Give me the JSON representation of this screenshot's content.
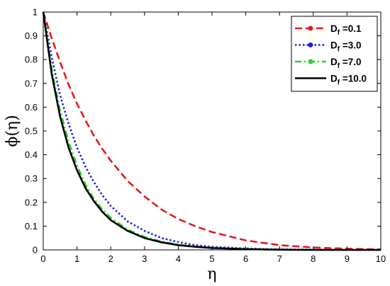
{
  "chart_data": {
    "type": "line",
    "title": "",
    "xlabel": "η",
    "ylabel": "ϕ(η)",
    "xlim": [
      0,
      10
    ],
    "ylim": [
      0,
      1
    ],
    "xticks": [
      "0",
      "1",
      "2",
      "3",
      "4",
      "5",
      "6",
      "7",
      "8",
      "9",
      "10"
    ],
    "yticks": [
      "0",
      "0.1",
      "0.2",
      "0.3",
      "0.4",
      "0.5",
      "0.6",
      "0.7",
      "0.8",
      "0.9",
      "1"
    ],
    "grid": false,
    "legend_position": "top-right",
    "series": [
      {
        "name": "Df =0.1",
        "legend_main": "D",
        "legend_sub": "f",
        "legend_value": " =0.1",
        "color": "#e41a1c",
        "style": "dashed",
        "marker": "circle",
        "x": [
          0,
          0.25,
          0.5,
          0.75,
          1,
          1.25,
          1.5,
          1.75,
          2,
          2.5,
          3,
          3.5,
          4,
          4.5,
          5,
          6,
          7,
          8,
          9,
          10
        ],
        "y": [
          1.0,
          0.89,
          0.79,
          0.695,
          0.615,
          0.545,
          0.48,
          0.425,
          0.375,
          0.29,
          0.225,
          0.17,
          0.13,
          0.1,
          0.075,
          0.04,
          0.02,
          0.01,
          0.005,
          0.002
        ]
      },
      {
        "name": "Df =3.0",
        "legend_main": "D",
        "legend_sub": "f",
        "legend_value": " =3.0",
        "color": "#1f1fd6",
        "style": "dotted",
        "marker": "circle",
        "x": [
          0,
          0.25,
          0.5,
          0.75,
          1,
          1.25,
          1.5,
          1.75,
          2,
          2.5,
          3,
          3.5,
          4,
          4.5,
          5,
          6,
          7,
          8,
          9,
          10
        ],
        "y": [
          1.0,
          0.81,
          0.65,
          0.53,
          0.43,
          0.35,
          0.285,
          0.23,
          0.185,
          0.12,
          0.08,
          0.05,
          0.033,
          0.02,
          0.013,
          0.006,
          0.002,
          0.001,
          0.0,
          0.0
        ]
      },
      {
        "name": "Df =7.0",
        "legend_main": "D",
        "legend_sub": "f",
        "legend_value": " =7.0",
        "color": "#33cc33",
        "style": "dash-dot",
        "marker": "circle",
        "x": [
          0,
          0.25,
          0.5,
          0.75,
          1,
          1.25,
          1.5,
          1.75,
          2,
          2.5,
          3,
          3.5,
          4,
          4.5,
          5,
          6,
          7,
          8,
          9,
          10
        ],
        "y": [
          1.0,
          0.76,
          0.585,
          0.455,
          0.355,
          0.275,
          0.215,
          0.17,
          0.135,
          0.085,
          0.055,
          0.035,
          0.022,
          0.014,
          0.009,
          0.004,
          0.001,
          0.0,
          0.0,
          0.0
        ]
      },
      {
        "name": "Df =10.0",
        "legend_main": "D",
        "legend_sub": "f",
        "legend_value": " =10.0",
        "color": "#000000",
        "style": "solid",
        "marker": "none",
        "x": [
          0,
          0.25,
          0.5,
          0.75,
          1,
          1.25,
          1.5,
          1.75,
          2,
          2.5,
          3,
          3.5,
          4,
          4.5,
          5,
          6,
          7,
          8,
          9,
          10
        ],
        "y": [
          1.0,
          0.74,
          0.56,
          0.43,
          0.335,
          0.26,
          0.205,
          0.16,
          0.125,
          0.08,
          0.05,
          0.032,
          0.02,
          0.013,
          0.008,
          0.003,
          0.001,
          0.0,
          0.0,
          0.0
        ]
      }
    ]
  }
}
